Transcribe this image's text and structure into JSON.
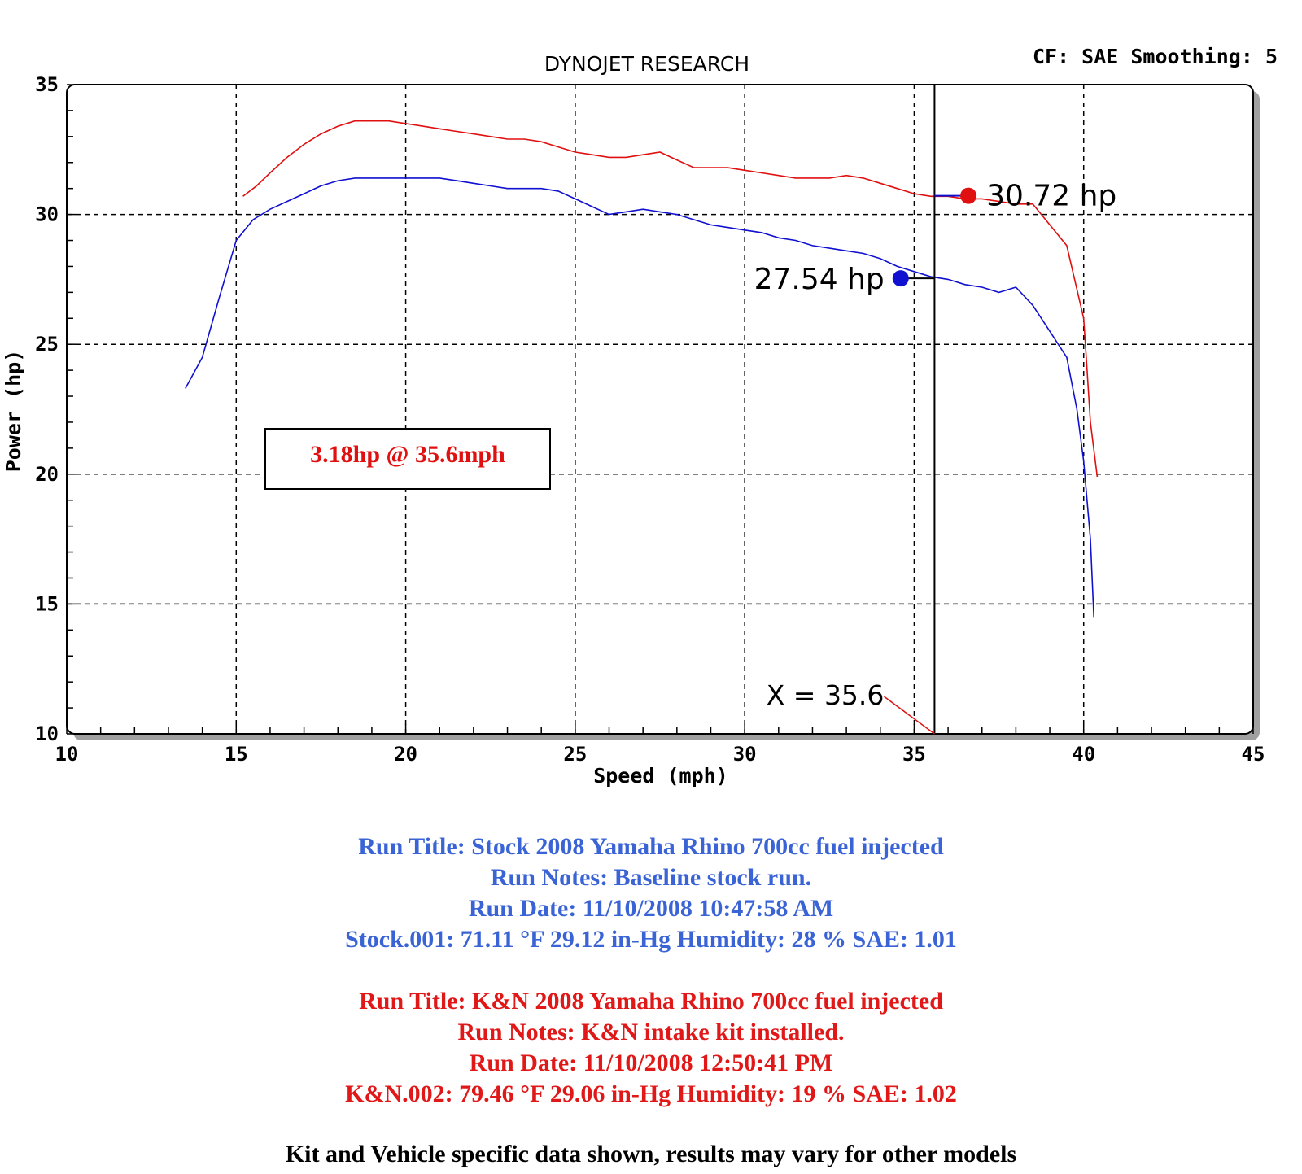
{
  "header": {
    "title": "DYNOJET RESEARCH",
    "settings": "CF: SAE  Smoothing: 5"
  },
  "chart_data": {
    "type": "line",
    "xlabel": "Speed (mph)",
    "ylabel": "Power (hp)",
    "xlim": [
      10,
      45
    ],
    "ylim": [
      10,
      35
    ],
    "xticks": [
      10,
      15,
      20,
      25,
      30,
      35,
      40,
      45
    ],
    "yticks": [
      10,
      15,
      20,
      25,
      30,
      35
    ],
    "grid": true,
    "cursor_x": 35.6,
    "cursor_label": "X = 35.6",
    "series": [
      {
        "name": "Stock",
        "color": "#1010d0",
        "marker_label": "27.54 hp",
        "marker_value": 27.54,
        "points": [
          [
            13.5,
            23.3
          ],
          [
            14.0,
            24.5
          ],
          [
            14.5,
            26.8
          ],
          [
            15.0,
            29.0
          ],
          [
            15.5,
            29.8
          ],
          [
            16.0,
            30.2
          ],
          [
            16.5,
            30.5
          ],
          [
            17.0,
            30.8
          ],
          [
            17.5,
            31.1
          ],
          [
            18.0,
            31.3
          ],
          [
            18.5,
            31.4
          ],
          [
            19.0,
            31.4
          ],
          [
            19.5,
            31.4
          ],
          [
            20.0,
            31.4
          ],
          [
            20.5,
            31.4
          ],
          [
            21.0,
            31.4
          ],
          [
            21.5,
            31.3
          ],
          [
            22.0,
            31.2
          ],
          [
            22.5,
            31.1
          ],
          [
            23.0,
            31.0
          ],
          [
            23.5,
            31.0
          ],
          [
            24.0,
            31.0
          ],
          [
            24.5,
            30.9
          ],
          [
            25.0,
            30.6
          ],
          [
            25.5,
            30.3
          ],
          [
            26.0,
            30.0
          ],
          [
            26.5,
            30.1
          ],
          [
            27.0,
            30.2
          ],
          [
            27.5,
            30.1
          ],
          [
            28.0,
            30.0
          ],
          [
            28.5,
            29.8
          ],
          [
            29.0,
            29.6
          ],
          [
            29.5,
            29.5
          ],
          [
            30.0,
            29.4
          ],
          [
            30.5,
            29.3
          ],
          [
            31.0,
            29.1
          ],
          [
            31.5,
            29.0
          ],
          [
            32.0,
            28.8
          ],
          [
            32.5,
            28.7
          ],
          [
            33.0,
            28.6
          ],
          [
            33.5,
            28.5
          ],
          [
            34.0,
            28.3
          ],
          [
            34.5,
            28.0
          ],
          [
            35.0,
            27.8
          ],
          [
            35.5,
            27.6
          ],
          [
            36.0,
            27.5
          ],
          [
            36.5,
            27.3
          ],
          [
            37.0,
            27.2
          ],
          [
            37.5,
            27.0
          ],
          [
            38.0,
            27.2
          ],
          [
            38.5,
            26.5
          ],
          [
            39.0,
            25.5
          ],
          [
            39.5,
            24.5
          ],
          [
            39.8,
            22.5
          ],
          [
            40.0,
            20.5
          ],
          [
            40.2,
            17.5
          ],
          [
            40.3,
            14.5
          ]
        ]
      },
      {
        "name": "K&N",
        "color": "#e01010",
        "marker_label": "30.72 hp",
        "marker_value": 30.72,
        "points": [
          [
            15.2,
            30.7
          ],
          [
            15.6,
            31.1
          ],
          [
            16.0,
            31.6
          ],
          [
            16.5,
            32.2
          ],
          [
            17.0,
            32.7
          ],
          [
            17.5,
            33.1
          ],
          [
            18.0,
            33.4
          ],
          [
            18.5,
            33.6
          ],
          [
            19.0,
            33.6
          ],
          [
            19.5,
            33.6
          ],
          [
            20.0,
            33.5
          ],
          [
            20.5,
            33.4
          ],
          [
            21.0,
            33.3
          ],
          [
            21.5,
            33.2
          ],
          [
            22.0,
            33.1
          ],
          [
            22.5,
            33.0
          ],
          [
            23.0,
            32.9
          ],
          [
            23.5,
            32.9
          ],
          [
            24.0,
            32.8
          ],
          [
            24.5,
            32.6
          ],
          [
            25.0,
            32.4
          ],
          [
            25.5,
            32.3
          ],
          [
            26.0,
            32.2
          ],
          [
            26.5,
            32.2
          ],
          [
            27.0,
            32.3
          ],
          [
            27.5,
            32.4
          ],
          [
            28.0,
            32.1
          ],
          [
            28.5,
            31.8
          ],
          [
            29.0,
            31.8
          ],
          [
            29.5,
            31.8
          ],
          [
            30.0,
            31.7
          ],
          [
            30.5,
            31.6
          ],
          [
            31.0,
            31.5
          ],
          [
            31.5,
            31.4
          ],
          [
            32.0,
            31.4
          ],
          [
            32.5,
            31.4
          ],
          [
            33.0,
            31.5
          ],
          [
            33.5,
            31.4
          ],
          [
            34.0,
            31.2
          ],
          [
            34.5,
            31.0
          ],
          [
            35.0,
            30.8
          ],
          [
            35.5,
            30.7
          ],
          [
            36.0,
            30.7
          ],
          [
            36.5,
            30.6
          ],
          [
            37.0,
            30.6
          ],
          [
            37.5,
            30.5
          ],
          [
            38.0,
            30.4
          ],
          [
            38.5,
            30.4
          ],
          [
            39.0,
            29.6
          ],
          [
            39.5,
            28.8
          ],
          [
            40.0,
            26.0
          ],
          [
            40.1,
            24.0
          ],
          [
            40.2,
            22.0
          ],
          [
            40.4,
            19.9
          ]
        ]
      }
    ],
    "annotation": "3.18hp @ 35.6mph"
  },
  "run_notes": {
    "stock": {
      "color": "#3a63d6",
      "lines": [
        "Run Title: Stock 2008 Yamaha Rhino 700cc fuel injected",
        "Run Notes: Baseline stock run.",
        "Run Date: 11/10/2008 10:47:58 AM",
        "Stock.001: 71.11 °F 29.12 in-Hg Humidity: 28 % SAE: 1.01"
      ]
    },
    "kn": {
      "color": "#e01818",
      "lines": [
        "Run Title: K&N 2008 Yamaha Rhino 700cc fuel injected",
        "Run Notes: K&N intake kit installed.",
        "Run Date: 11/10/2008 12:50:41 PM",
        "K&N.002: 79.46 °F 29.06 in-Hg Humidity: 19 % SAE: 1.02"
      ]
    }
  },
  "disclaimer": "Kit and Vehicle specific data shown, results may vary for other models"
}
